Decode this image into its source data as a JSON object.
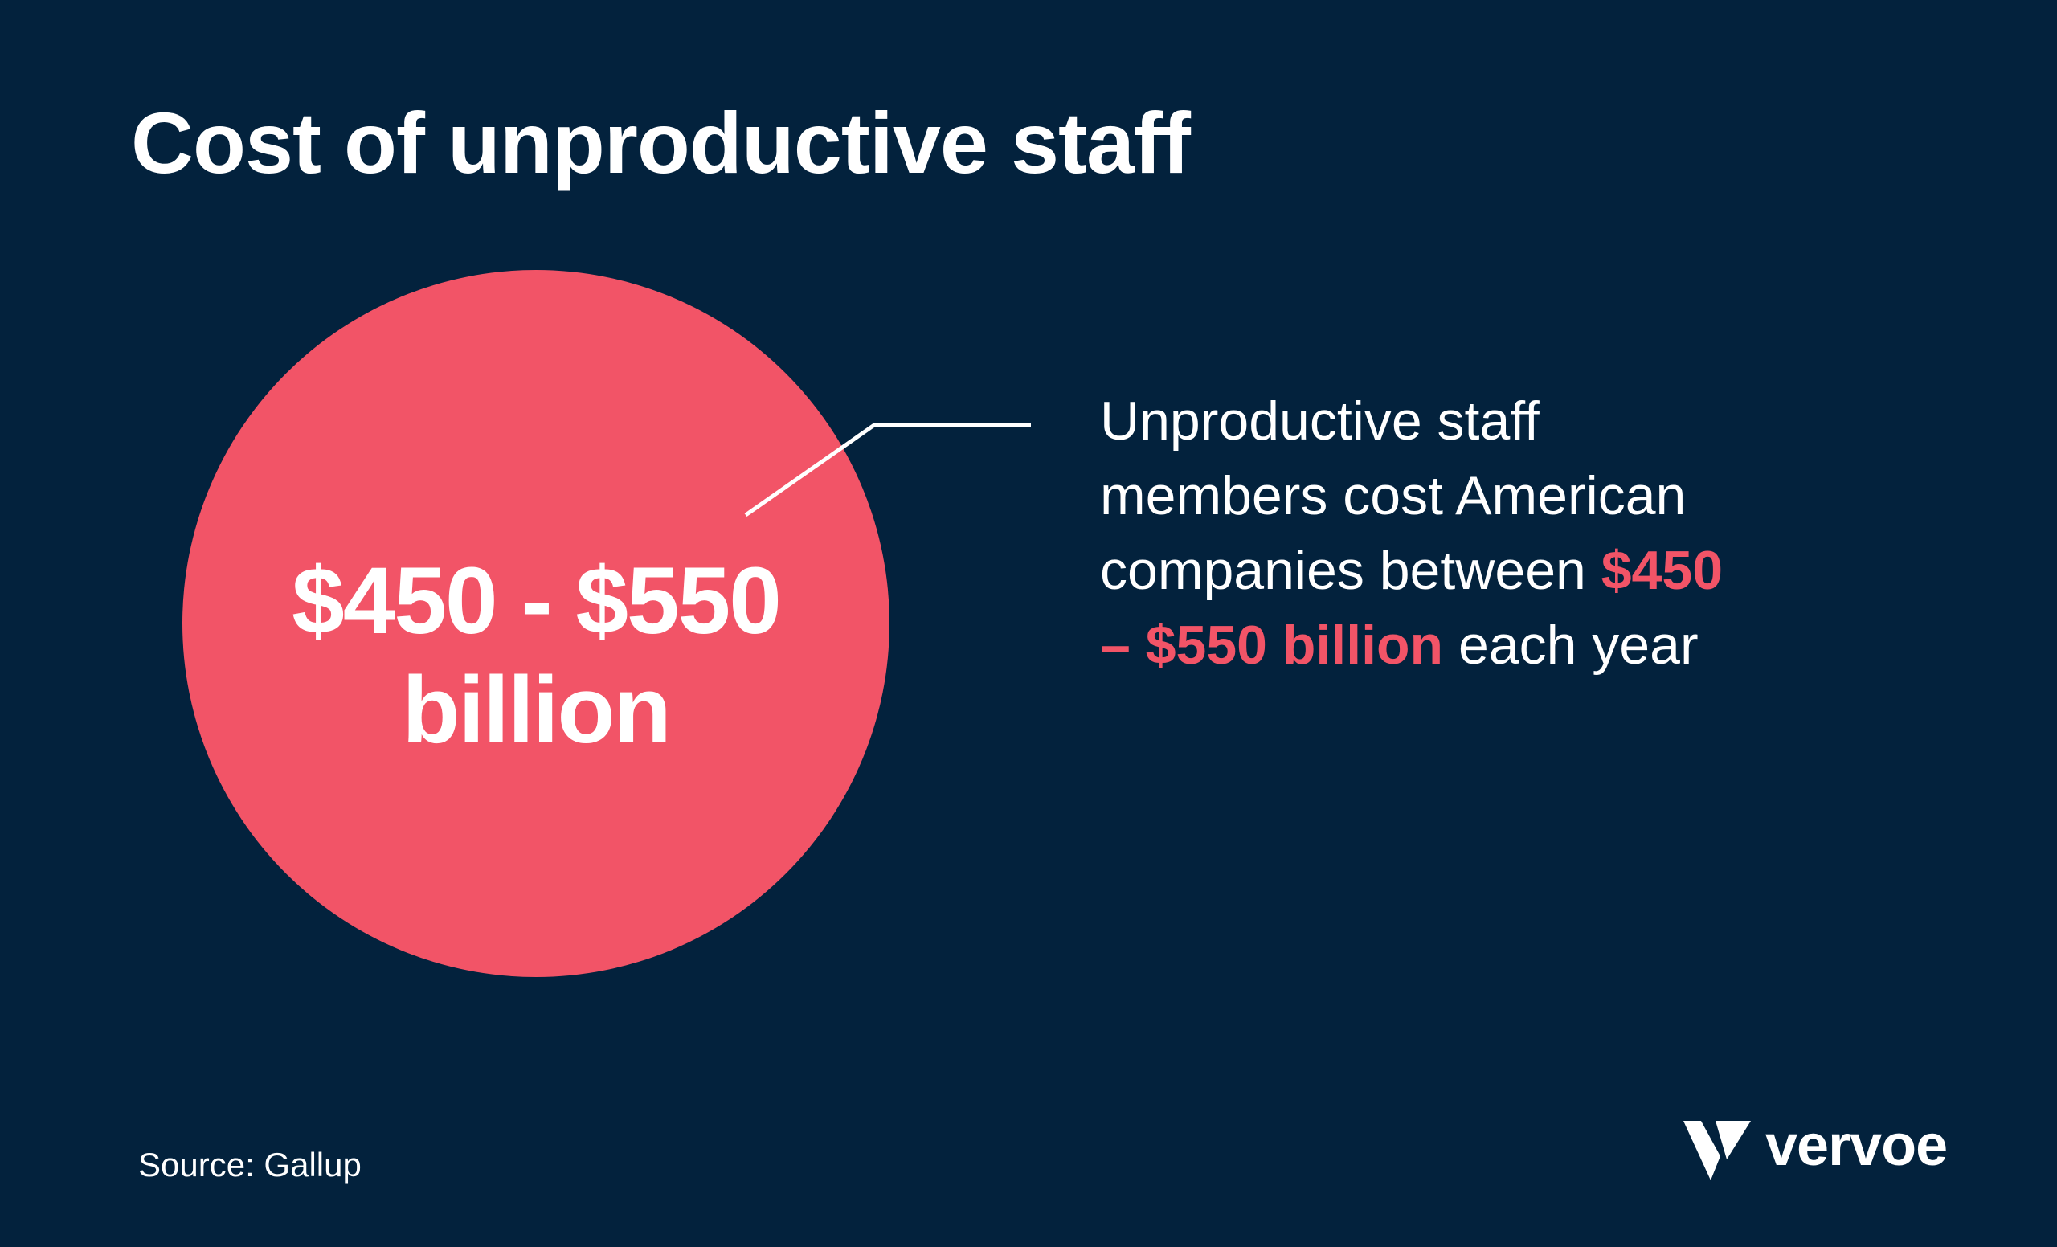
{
  "title": "Cost of unproductive staff",
  "circle": {
    "line1": "$450 - $550",
    "line2": "billion",
    "color": "#f25467"
  },
  "description": {
    "line1": "Unproductive staff",
    "line2": "members cost American",
    "line3_pre": "companies between ",
    "line3_highlight": "$450",
    "line4_highlight": "– $550 billion",
    "line4_post": " each year"
  },
  "source": "Source: Gallup",
  "logo": {
    "text": "vervoe",
    "icon": "vervoe-v-mark-icon"
  },
  "colors": {
    "background": "#03223d",
    "accent": "#f25467",
    "text": "#ffffff"
  }
}
